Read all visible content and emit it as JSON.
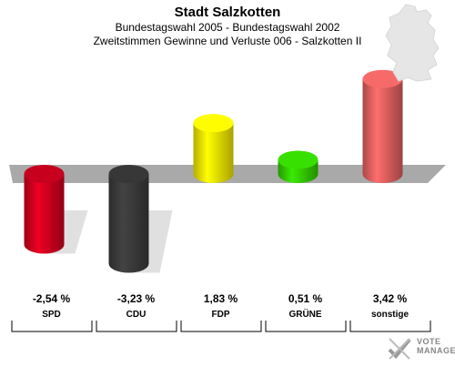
{
  "header": {
    "title": "Stadt Salzkotten",
    "subtitle1": "Bundestagswahl 2005 - Bundestagswahl 2002",
    "subtitle2": "Zweitstimmen Gewinne und Verluste 006 - Salzkotten II"
  },
  "watermark": {
    "line1": "VOTE",
    "line2": "MANAGER"
  },
  "chart_data": {
    "type": "bar",
    "title": "Stadt Salzkotten",
    "subtitle": "Bundestagswahl 2005 - Bundestagswahl 2002 / Zweitstimmen Gewinne und Verluste 006 - Salzkotten II",
    "categories": [
      "SPD",
      "CDU",
      "FDP",
      "GRÜNE",
      "sonstige"
    ],
    "values": [
      -2.54,
      -3.23,
      1.83,
      0.51,
      3.42
    ],
    "value_labels": [
      "-2,54 %",
      "-3,23 %",
      "1,83 %",
      "0,51 %",
      "3,42 %"
    ],
    "colors": [
      "#d0001e",
      "#3a3a3a",
      "#f2e600",
      "#33cc00",
      "#e06060"
    ],
    "unit": "%",
    "ylim": [
      -3.6,
      3.8
    ],
    "grid": false,
    "legend": "none"
  }
}
